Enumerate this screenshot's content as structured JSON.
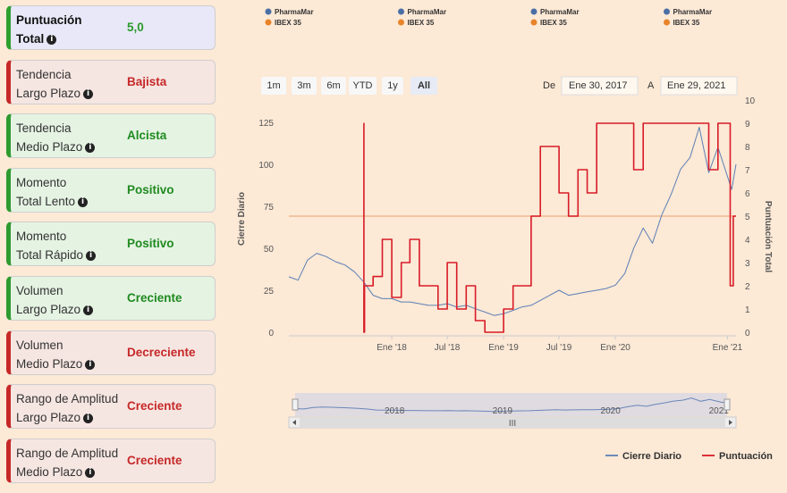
{
  "indicators": [
    {
      "label_line1": "Puntuación",
      "label_line2": "Total",
      "value": "5,0",
      "tone": "neutral"
    },
    {
      "label_line1": "Tendencia",
      "label_line2": "Largo Plazo",
      "value": "Bajista",
      "tone": "neg"
    },
    {
      "label_line1": "Tendencia",
      "label_line2": "Medio Plazo",
      "value": "Alcista",
      "tone": "pos"
    },
    {
      "label_line1": "Momento",
      "label_line2": "Total Lento",
      "value": "Positivo",
      "tone": "pos"
    },
    {
      "label_line1": "Momento",
      "label_line2": "Total Rápido",
      "value": "Positivo",
      "tone": "pos"
    },
    {
      "label_line1": "Volumen",
      "label_line2": "Largo Plazo",
      "value": "Creciente",
      "tone": "pos"
    },
    {
      "label_line1": "Volumen",
      "label_line2": "Medio Plazo",
      "value": "Decreciente",
      "tone": "neg"
    },
    {
      "label_line1": "Rango de Amplitud",
      "label_line2": "Largo Plazo",
      "value": "Creciente",
      "tone": "neg"
    },
    {
      "label_line1": "Rango de Amplitud",
      "label_line2": "Medio Plazo",
      "value": "Creciente",
      "tone": "neg"
    }
  ],
  "top_legend": [
    {
      "name": "PharmaMar",
      "color": "#4a6fa5"
    },
    {
      "name": "IBEX 35",
      "color": "#e8832a"
    },
    {
      "name": "PharmaMar",
      "color": "#4a6fa5"
    },
    {
      "name": "IBEX 35",
      "color": "#e8832a"
    },
    {
      "name": "PharmaMar",
      "color": "#4a6fa5"
    },
    {
      "name": "IBEX 35",
      "color": "#e8832a"
    },
    {
      "name": "PharmaMar",
      "color": "#4a6fa5"
    },
    {
      "name": "IBEX 35",
      "color": "#e8832a"
    }
  ],
  "range_selector": {
    "buttons": [
      "1m",
      "3m",
      "6m",
      "YTD",
      "1y",
      "All"
    ],
    "active": "All",
    "from_label": "De",
    "from_value": "Ene 30, 2017",
    "to_label": "A",
    "to_value": "Ene 29, 2021"
  },
  "navigator": {
    "year_labels": [
      "2018",
      "2019",
      "2020",
      "2021"
    ],
    "scroll_grip": "III"
  },
  "bottom_legend": [
    {
      "name": "Cierre Diario",
      "color": "#5b7fb5"
    },
    {
      "name": "Puntuación",
      "color": "#d81b27"
    }
  ],
  "chart_data": {
    "type": "line",
    "x_ticks": [
      "Ene '18",
      "Jul '18",
      "Ene '19",
      "Jul '19",
      "Ene '20",
      "Ene '21"
    ],
    "x_tick_dates": [
      "2018-01-01",
      "2018-07-01",
      "2019-01-01",
      "2019-07-01",
      "2020-01-01",
      "2021-01-01"
    ],
    "x_range": [
      "2017-01-30",
      "2021-01-29"
    ],
    "y_left": {
      "label": "Cierre Diario",
      "ticks": [
        0,
        25,
        50,
        75,
        100,
        125
      ],
      "range": [
        0,
        135
      ],
      "color": "#4a6fa5"
    },
    "y_right": {
      "label": "Puntuación Total",
      "ticks": [
        0,
        1,
        2,
        3,
        4,
        5,
        6,
        7,
        8,
        9,
        10
      ],
      "range": [
        0,
        10
      ],
      "color": "#d81b27"
    },
    "reference_line": {
      "axis": "right",
      "value": 5.0,
      "color": "#f0b890"
    },
    "series": [
      {
        "name": "Cierre Diario",
        "axis": "left",
        "color": "#5b7fb5",
        "points": [
          [
            "2017-01-30",
            33
          ],
          [
            "2017-03-01",
            31
          ],
          [
            "2017-04-01",
            43
          ],
          [
            "2017-05-01",
            47
          ],
          [
            "2017-06-01",
            45
          ],
          [
            "2017-07-01",
            42
          ],
          [
            "2017-08-01",
            40
          ],
          [
            "2017-09-01",
            36
          ],
          [
            "2017-10-01",
            30
          ],
          [
            "2017-11-01",
            22
          ],
          [
            "2017-12-01",
            20
          ],
          [
            "2018-01-01",
            20
          ],
          [
            "2018-02-01",
            18
          ],
          [
            "2018-03-01",
            18
          ],
          [
            "2018-04-01",
            17
          ],
          [
            "2018-05-01",
            16
          ],
          [
            "2018-06-01",
            16
          ],
          [
            "2018-07-01",
            17
          ],
          [
            "2018-08-01",
            15
          ],
          [
            "2018-09-01",
            16
          ],
          [
            "2018-10-01",
            14
          ],
          [
            "2018-11-01",
            12
          ],
          [
            "2018-12-01",
            10
          ],
          [
            "2019-01-01",
            11
          ],
          [
            "2019-02-01",
            13
          ],
          [
            "2019-03-01",
            15
          ],
          [
            "2019-04-01",
            16
          ],
          [
            "2019-05-01",
            19
          ],
          [
            "2019-06-01",
            22
          ],
          [
            "2019-07-01",
            25
          ],
          [
            "2019-08-01",
            22
          ],
          [
            "2019-09-01",
            23
          ],
          [
            "2019-10-01",
            24
          ],
          [
            "2019-11-01",
            25
          ],
          [
            "2019-12-01",
            26
          ],
          [
            "2020-01-01",
            28
          ],
          [
            "2020-02-01",
            35
          ],
          [
            "2020-03-01",
            50
          ],
          [
            "2020-04-01",
            62
          ],
          [
            "2020-05-01",
            53
          ],
          [
            "2020-06-01",
            70
          ],
          [
            "2020-07-01",
            82
          ],
          [
            "2020-08-01",
            97
          ],
          [
            "2020-09-01",
            104
          ],
          [
            "2020-10-01",
            122
          ],
          [
            "2020-11-01",
            95
          ],
          [
            "2020-12-01",
            110
          ],
          [
            "2021-01-15",
            85
          ],
          [
            "2021-01-29",
            100
          ]
        ]
      },
      {
        "name": "Puntuación",
        "axis": "right",
        "color": "#d81b27",
        "points": [
          [
            "2017-10-01",
            9
          ],
          [
            "2017-10-02",
            0
          ],
          [
            "2017-10-04",
            2
          ],
          [
            "2017-11-01",
            2.4
          ],
          [
            "2017-12-01",
            4
          ],
          [
            "2018-01-01",
            1.5
          ],
          [
            "2018-02-01",
            3
          ],
          [
            "2018-03-01",
            4
          ],
          [
            "2018-04-01",
            2
          ],
          [
            "2018-05-01",
            2
          ],
          [
            "2018-06-01",
            1
          ],
          [
            "2018-07-01",
            3
          ],
          [
            "2018-08-01",
            1
          ],
          [
            "2018-09-01",
            2
          ],
          [
            "2018-10-01",
            0.5
          ],
          [
            "2018-11-01",
            0
          ],
          [
            "2018-12-01",
            0
          ],
          [
            "2019-01-01",
            1
          ],
          [
            "2019-02-01",
            2
          ],
          [
            "2019-03-01",
            2
          ],
          [
            "2019-04-01",
            5
          ],
          [
            "2019-05-01",
            8
          ],
          [
            "2019-06-01",
            8
          ],
          [
            "2019-07-01",
            6
          ],
          [
            "2019-08-01",
            5
          ],
          [
            "2019-09-01",
            7
          ],
          [
            "2019-10-01",
            6
          ],
          [
            "2019-11-01",
            9
          ],
          [
            "2020-01-01",
            9
          ],
          [
            "2020-02-01",
            9
          ],
          [
            "2020-03-01",
            7
          ],
          [
            "2020-04-01",
            9
          ],
          [
            "2020-05-01",
            9
          ],
          [
            "2020-06-01",
            9
          ],
          [
            "2020-08-01",
            9
          ],
          [
            "2020-09-01",
            9
          ],
          [
            "2020-10-01",
            9
          ],
          [
            "2020-11-01",
            7
          ],
          [
            "2020-12-01",
            9
          ],
          [
            "2021-01-10",
            2
          ],
          [
            "2021-01-20",
            5
          ],
          [
            "2021-01-29",
            5
          ]
        ]
      }
    ]
  }
}
